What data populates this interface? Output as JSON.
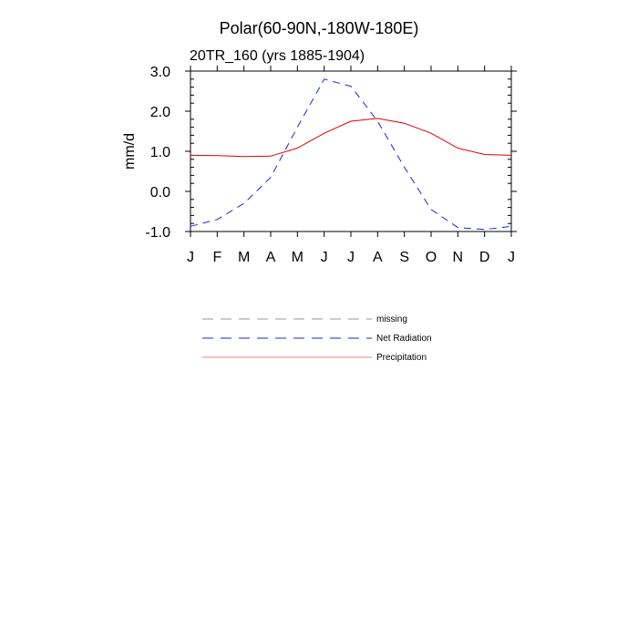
{
  "chart_data": {
    "type": "line",
    "title": "Polar(60-90N,-180W-180E)",
    "subtitle": "20TR_160 (yrs 1885-1904)",
    "ylabel": "mm/d",
    "xlabel": "",
    "ylim": [
      -1.0,
      3.0
    ],
    "yticks": [
      "3.0",
      "2.0",
      "1.0",
      "0.0",
      "-1.0"
    ],
    "categories": [
      "J",
      "F",
      "M",
      "A",
      "M",
      "J",
      "J",
      "A",
      "S",
      "O",
      "N",
      "D",
      "J"
    ],
    "series": [
      {
        "name": "Net Radiation",
        "style": "dashed",
        "color": "#2222dd",
        "values": [
          -0.87,
          -0.7,
          -0.3,
          0.35,
          1.6,
          2.8,
          2.62,
          1.75,
          0.6,
          -0.45,
          -0.9,
          -0.95,
          -0.87
        ]
      },
      {
        "name": "Precipitation",
        "style": "solid",
        "color": "#e00000",
        "values": [
          0.9,
          0.89,
          0.87,
          0.88,
          1.08,
          1.45,
          1.75,
          1.82,
          1.7,
          1.45,
          1.08,
          0.92,
          0.9
        ]
      }
    ],
    "legend": [
      {
        "label": "missing",
        "style": "dashed",
        "color": "#999999"
      },
      {
        "label": "Net Radiation",
        "style": "dashed",
        "color": "#2222dd"
      },
      {
        "label": "Precipitation",
        "style": "solid",
        "color": "#e00000"
      }
    ]
  }
}
